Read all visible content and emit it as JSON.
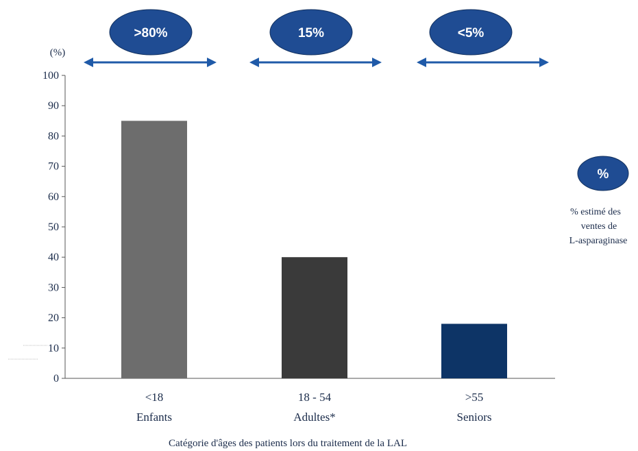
{
  "chart_data": {
    "type": "bar",
    "ylabel": "(%)",
    "xlabel": "Catégorie d'âges des patients lors du traitement de la LAL",
    "ylim": [
      0,
      100
    ],
    "yticks": [
      "0",
      "10",
      "20",
      "30",
      "40",
      "50",
      "60",
      "70",
      "80",
      "90",
      "100"
    ],
    "categories": [
      {
        "range": "<18",
        "group": "Enfants"
      },
      {
        "range": "18 - 54",
        "group": "Adultes*"
      },
      {
        "range": ">55",
        "group": "Seniors"
      }
    ],
    "values": [
      85,
      40,
      18
    ],
    "bar_colors": [
      "#6d6d6d",
      "#3a3a3a",
      "#0d3466"
    ],
    "sales_share_labels": [
      ">80%",
      "15%",
      "<5%"
    ],
    "grid": false,
    "legend": {
      "symbol": "%",
      "lines": [
        "% estimé des",
        "ventes de",
        "L-asparaginase"
      ],
      "placement": "right"
    }
  },
  "colors": {
    "ellipse_fill": "#1f4c93",
    "ellipse_stroke": "#12315f",
    "arrow": "#1f5aa8",
    "axis": "#555555",
    "text": "#1a2b4a"
  }
}
